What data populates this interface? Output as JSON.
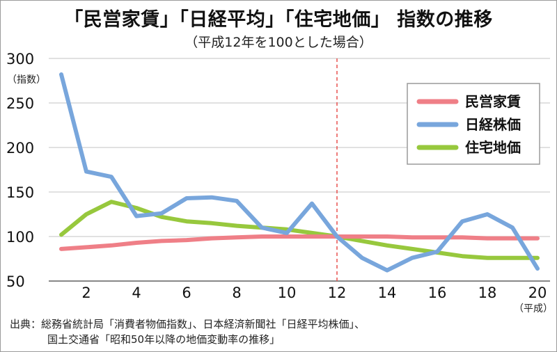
{
  "title": "「民営家賃」「日経平均」「住宅地価」 指数の推移",
  "subtitle": "（平成12年を100とした場合）",
  "source": {
    "line1": "出典：総務省統計局「消費者物価指数」、日本経済新聞社「日経平均株価」、",
    "line2": "国土交通省「昭和50年以降の地価変動率の推移」"
  },
  "colors": {
    "rent": "#ef7f87",
    "nikkei": "#78a6dc",
    "land": "#97c83d",
    "refline": "#e8504e",
    "grid": "#d7d7d7"
  },
  "chart_data": {
    "type": "line",
    "title": "「民営家賃」「日経平均」「住宅地価」 指数の推移",
    "subtitle": "（平成12年を100とした場合）",
    "xlabel": "（平成）",
    "ylabel": "（指数）",
    "ylim": [
      50,
      300
    ],
    "xlim": [
      0.5,
      20.5
    ],
    "grid": true,
    "legend": "top-right",
    "yticks": [
      50,
      100,
      150,
      200,
      250,
      300
    ],
    "xticks": [
      2,
      4,
      6,
      8,
      10,
      12,
      14,
      16,
      18,
      20
    ],
    "x": [
      1,
      2,
      3,
      4,
      5,
      6,
      7,
      8,
      9,
      10,
      11,
      12,
      13,
      14,
      15,
      16,
      17,
      18,
      19,
      20
    ],
    "reference_x": 12,
    "series": [
      {
        "name": "民営家賃",
        "color": "#ef7f87",
        "values": [
          86,
          88,
          90,
          93,
          95,
          96,
          98,
          99,
          100,
          100,
          100,
          100,
          100,
          100,
          99,
          99,
          99,
          98,
          98,
          98
        ]
      },
      {
        "name": "日経株価",
        "color": "#78a6dc",
        "values": [
          282,
          173,
          167,
          123,
          126,
          143,
          144,
          140,
          110,
          104,
          137,
          100,
          76,
          62,
          76,
          83,
          117,
          125,
          110,
          64
        ]
      },
      {
        "name": "住宅地価",
        "color": "#97c83d",
        "values": [
          102,
          125,
          139,
          132,
          122,
          117,
          115,
          112,
          110,
          108,
          104,
          100,
          95,
          90,
          86,
          82,
          78,
          76,
          76,
          76
        ]
      }
    ]
  }
}
